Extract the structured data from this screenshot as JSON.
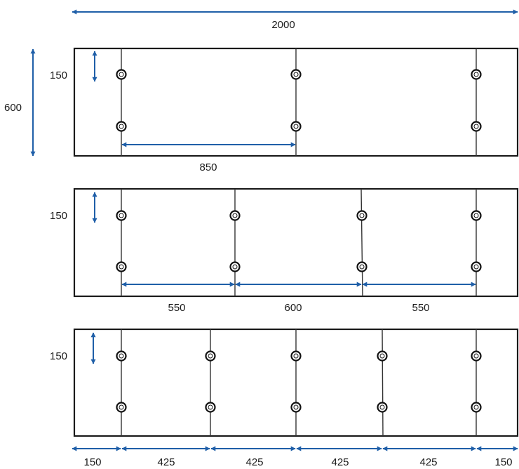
{
  "colors": {
    "dimension": "#1f5fa8",
    "outline": "#1a1a1a"
  },
  "dimensions": {
    "total_width": "2000",
    "panel_height": "600",
    "edge_offset": "150"
  },
  "panels": [
    {
      "id": "panel-1",
      "hole_offset_label": "150",
      "spacing_labels": [
        "850"
      ]
    },
    {
      "id": "panel-2",
      "hole_offset_label": "150",
      "spacing_labels": [
        "550",
        "600",
        "550"
      ]
    },
    {
      "id": "panel-3",
      "hole_offset_label": "150",
      "spacing_labels": [
        "150",
        "425",
        "425",
        "425",
        "425",
        "150"
      ]
    }
  ]
}
